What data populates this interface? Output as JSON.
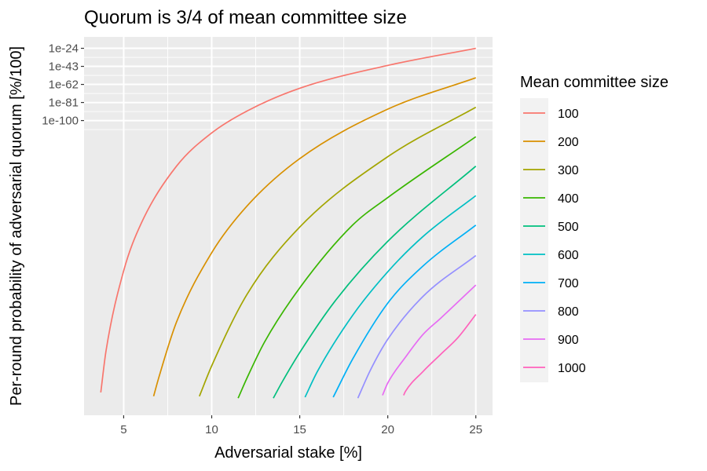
{
  "chart_data": {
    "type": "line",
    "title": "Quorum is 3/4 of mean committee size",
    "xlabel": "Adversarial stake [%]",
    "ylabel": "Per-round probability of adversarial quorum [%/100]",
    "x_ticks": [
      "5",
      "10",
      "15",
      "20",
      "25"
    ],
    "x_tick_values": [
      5,
      10,
      15,
      20,
      25
    ],
    "y_ticks": [
      "1e-24",
      "1e-43",
      "1e-62",
      "1e-81",
      "1e-100"
    ],
    "y_tick_values": [
      -24,
      -43,
      -62,
      -81,
      -100
    ],
    "y_scale": "log10",
    "xlim": [
      2.75,
      25.95
    ],
    "ylim": [
      -410,
      -12
    ],
    "grid": true,
    "legend": {
      "title": "Mean committee size",
      "placement": "right"
    },
    "series": [
      {
        "name": "100",
        "color": "#F8766D",
        "x": [
          3.7,
          4,
          5,
          6,
          8,
          10,
          12,
          15,
          20,
          25
        ],
        "y": [
          -386,
          -342,
          -258,
          -208,
          -148,
          -113,
          -90,
          -66,
          -42,
          -24
        ]
      },
      {
        "name": "200",
        "color": "#D89000",
        "x": [
          6.7,
          7,
          8,
          10,
          12,
          15,
          20,
          25
        ],
        "y": [
          -390,
          -370,
          -312,
          -239,
          -190,
          -140,
          -88,
          -55
        ]
      },
      {
        "name": "300",
        "color": "#A3A500",
        "x": [
          9.3,
          10,
          12,
          15,
          20,
          25
        ],
        "y": [
          -390,
          -358,
          -283,
          -212,
          -138,
          -86
        ]
      },
      {
        "name": "400",
        "color": "#39B600",
        "x": [
          11.5,
          12,
          13,
          15,
          18,
          20,
          25
        ],
        "y": [
          -392,
          -371,
          -333,
          -276,
          -210,
          -181,
          -117
        ]
      },
      {
        "name": "500",
        "color": "#00BF7D",
        "x": [
          13.5,
          14,
          15,
          17,
          20,
          25
        ],
        "y": [
          -392,
          -375,
          -344,
          -290,
          -227,
          -148
        ]
      },
      {
        "name": "600",
        "color": "#00BFC4",
        "x": [
          15.3,
          16,
          18,
          20,
          22,
          25
        ],
        "y": [
          -391,
          -364,
          -305,
          -259,
          -222,
          -179
        ]
      },
      {
        "name": "700",
        "color": "#00B0F6",
        "x": [
          16.9,
          18,
          20,
          22,
          25
        ],
        "y": [
          -391,
          -351,
          -292,
          -253,
          -210
        ]
      },
      {
        "name": "800",
        "color": "#9590FF",
        "x": [
          18.3,
          19,
          20,
          22,
          25
        ],
        "y": [
          -392,
          -363,
          -330,
          -285,
          -242
        ]
      },
      {
        "name": "900",
        "color": "#E76BF3",
        "x": [
          19.7,
          20,
          21,
          22,
          23,
          25
        ],
        "y": [
          -389,
          -376,
          -349,
          -325,
          -308,
          -273
        ]
      },
      {
        "name": "1000",
        "color": "#FF62BC",
        "x": [
          20.9,
          21,
          22,
          23,
          24,
          25
        ],
        "y": [
          -389,
          -385,
          -364,
          -346,
          -328,
          -304
        ]
      }
    ]
  }
}
